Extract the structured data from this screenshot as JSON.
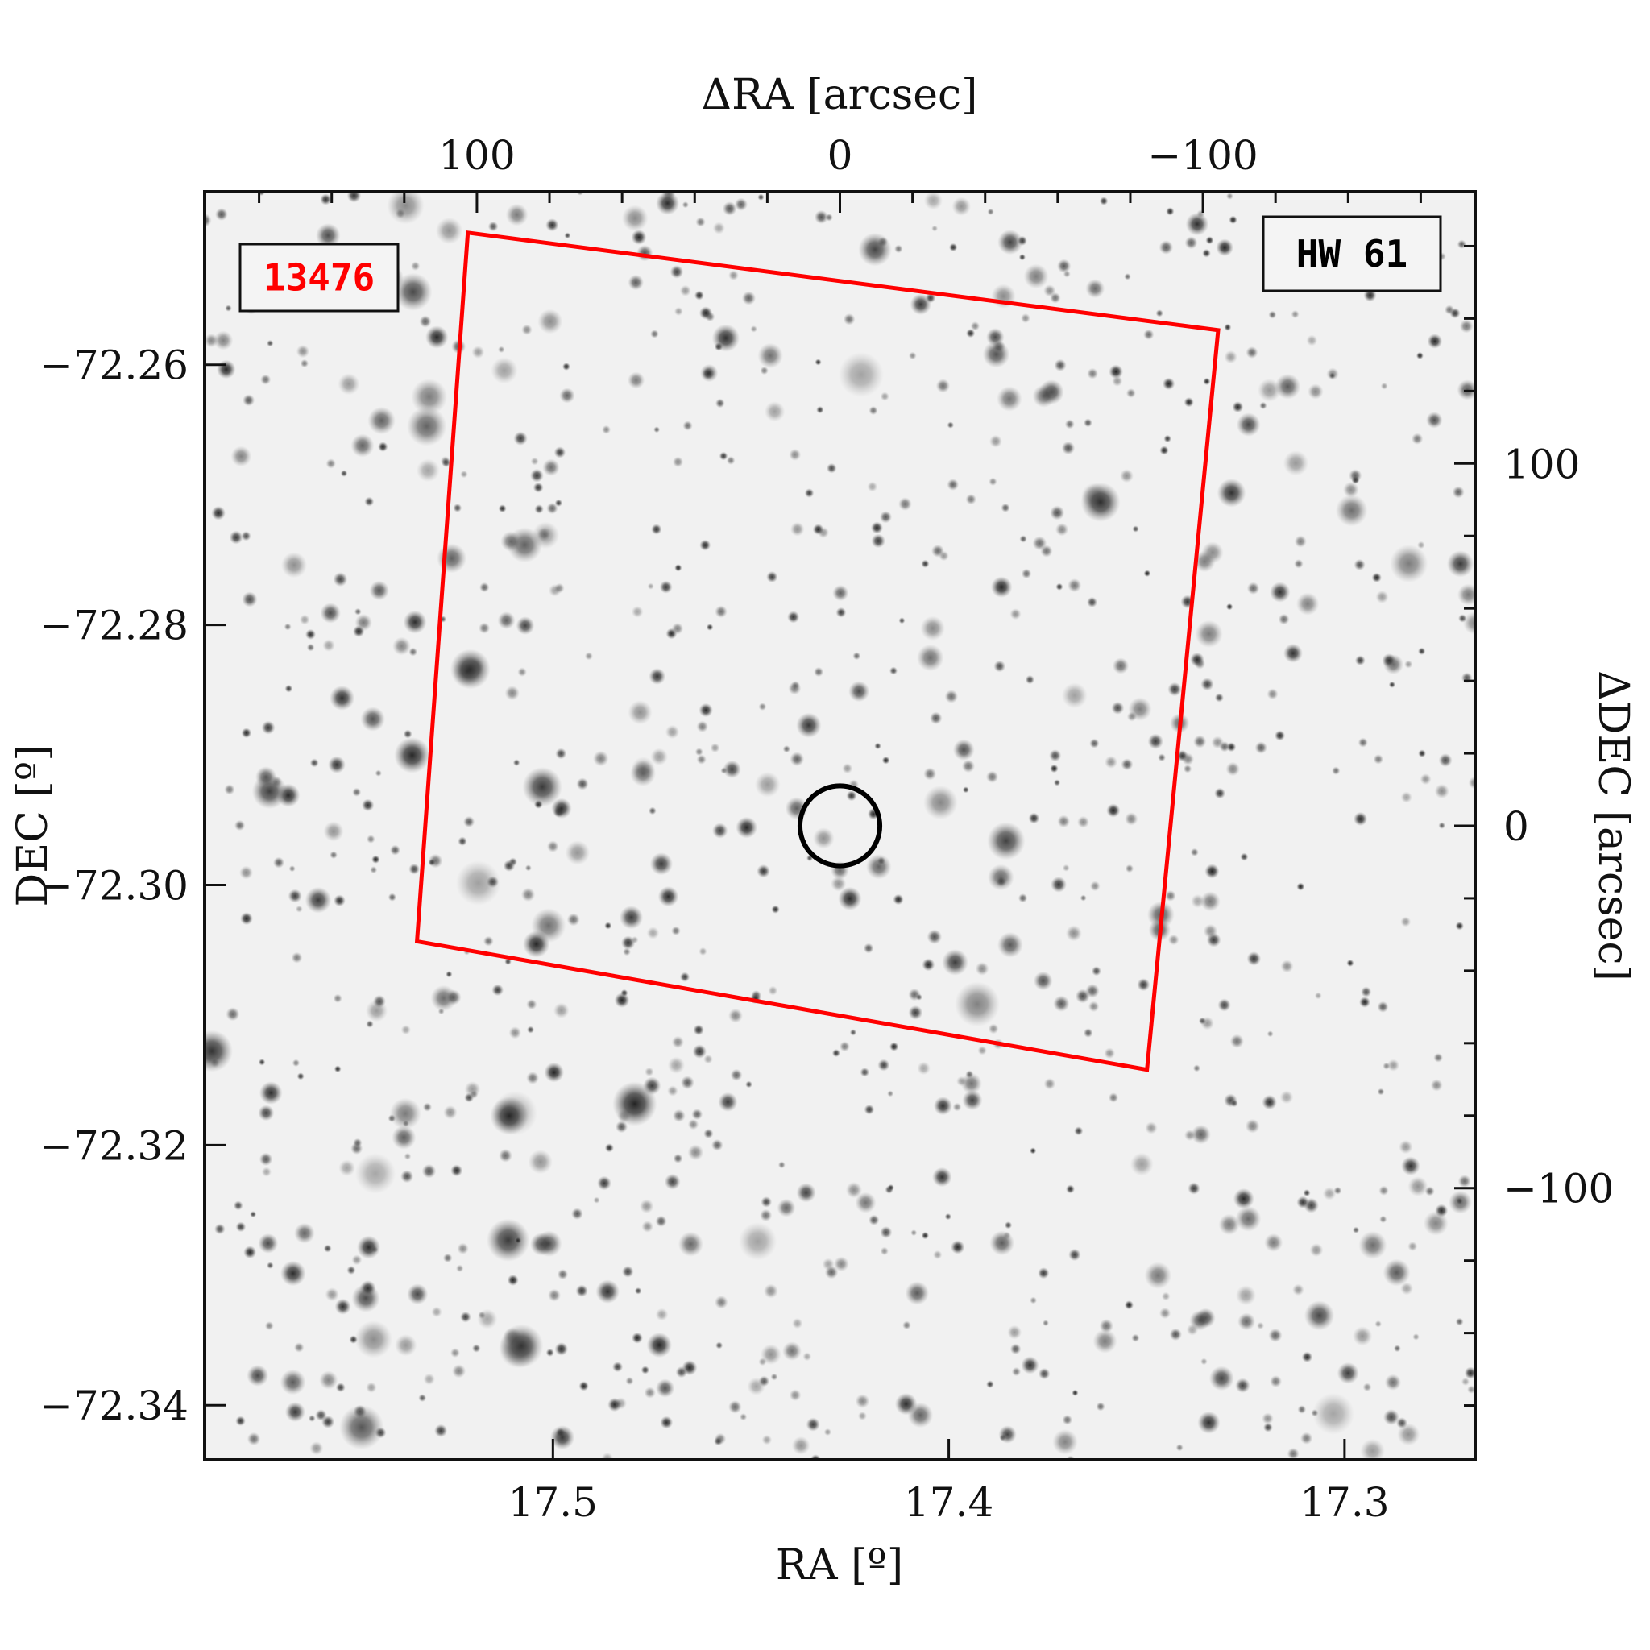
{
  "chart_data": {
    "type": "sky-image",
    "xlabel": "RA [º]",
    "ylabel": "DEC [º]",
    "x2label": "ΔRA [arcsec]",
    "y2label": "ΔDEC [arcsec]",
    "xlim": [
      17.588,
      17.267
    ],
    "xticks": [
      17.5,
      17.4,
      17.3
    ],
    "ylim": [
      -72.3442,
      -72.2467
    ],
    "yticks": [
      {
        "value": -72.26,
        "label": "−72.26"
      },
      {
        "value": -72.28,
        "label": "−72.28"
      },
      {
        "value": -72.3,
        "label": "−72.30"
      },
      {
        "value": -72.32,
        "label": "−72.32"
      },
      {
        "value": -72.34,
        "label": "−72.34"
      }
    ],
    "x2lim": [
      175,
      -175
    ],
    "x2ticks": [
      100,
      0,
      {
        "value": -100,
        "label": "−100"
      }
    ],
    "x2minorticks": [
      160,
      140,
      120,
      80,
      60,
      40,
      20,
      -20,
      -40,
      -60,
      -80,
      -120,
      -140,
      -160
    ],
    "y2lim": [
      -175,
      175
    ],
    "y2ticks": [
      100,
      0,
      {
        "value": -100,
        "label": "−100"
      }
    ],
    "y2minorticks": [
      160,
      140,
      120,
      80,
      60,
      40,
      20,
      -20,
      -40,
      -60,
      -80,
      -120,
      -140,
      -160
    ],
    "annotations": [
      {
        "text": "13476",
        "color": "#ff0000"
      },
      {
        "text": "HW 61",
        "color": "#000000"
      }
    ],
    "footprint": {
      "color": "#ff0000",
      "x": [
        102.5,
        -104.2,
        -84.6,
        116.5
      ],
      "y": [
        163.7,
        136.8,
        -67.3,
        -31.9
      ]
    },
    "target": {
      "color": "#000000",
      "x": 0,
      "y": 0,
      "radius": 11
    }
  }
}
